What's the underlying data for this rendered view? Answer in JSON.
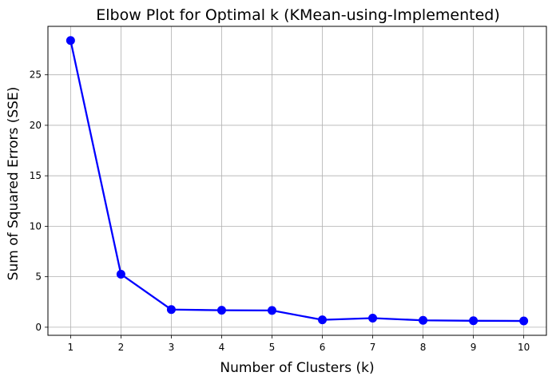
{
  "chart_data": {
    "type": "line",
    "title": "Elbow Plot for Optimal k (KMean-using-Implemented)",
    "xlabel": "Number of Clusters (k)",
    "ylabel": "Sum of Squared Errors (SSE)",
    "x": [
      1,
      2,
      3,
      4,
      5,
      6,
      7,
      8,
      9,
      10
    ],
    "series": [
      {
        "values": [
          28.4,
          5.25,
          1.75,
          1.68,
          1.66,
          0.73,
          0.9,
          0.68,
          0.64,
          0.62
        ],
        "color": "#0000ff",
        "marker": "circle"
      }
    ],
    "xticks": [
      "1",
      "2",
      "3",
      "4",
      "5",
      "6",
      "7",
      "8",
      "9",
      "10"
    ],
    "yticks": [
      0,
      5,
      10,
      15,
      20,
      25
    ],
    "ytick_labels": [
      "0",
      "5",
      "10",
      "15",
      "20",
      "25"
    ],
    "xlim": [
      0.55,
      10.45
    ],
    "ylim": [
      -0.8,
      29.8
    ],
    "grid": true
  }
}
